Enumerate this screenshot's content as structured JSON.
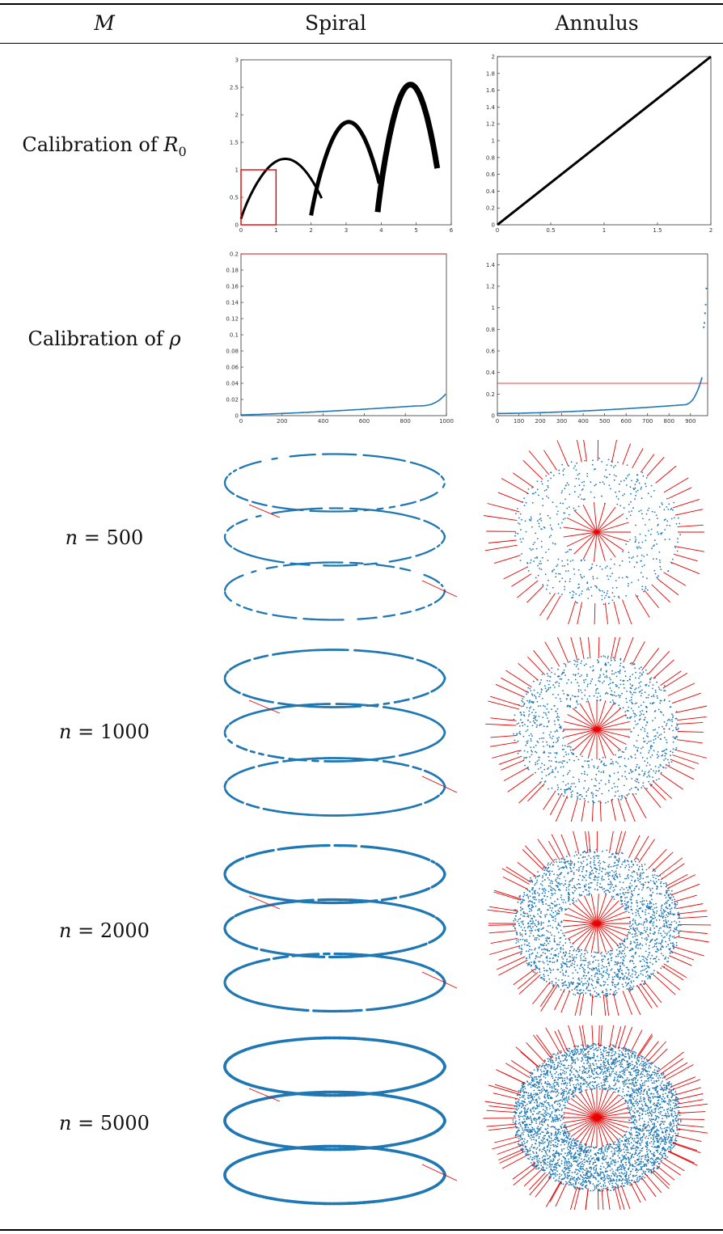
{
  "header": {
    "col_m": "M",
    "col_spiral": "Spiral",
    "col_annulus": "Annulus"
  },
  "rows": {
    "calib_r0": {
      "prefix": "Calibration of ",
      "sym": "R",
      "sub": "0"
    },
    "calib_rho": {
      "prefix": "Calibration of ",
      "sym": "ρ"
    },
    "n500": {
      "sym": "n",
      "rest": " = 500"
    },
    "n1000": {
      "sym": "n",
      "rest": " = 1000"
    },
    "n2000": {
      "sym": "n",
      "rest": " = 2000"
    },
    "n5000": {
      "sym": "n",
      "rest": " = 5000"
    }
  },
  "colors": {
    "points": "#1f77b4",
    "lines": "#e60000",
    "curve": "#000000"
  },
  "chart_data": [
    {
      "id": "spiral-r0",
      "type": "line",
      "xlim": [
        0,
        6
      ],
      "ylim": [
        0,
        3
      ],
      "xticks": [
        "0",
        "1",
        "2",
        "3",
        "4",
        "5",
        "6"
      ],
      "yticks": [
        "0",
        "0.5",
        "1",
        "1.5",
        "2",
        "2.5",
        "3"
      ],
      "highlight_box": {
        "x": [
          0,
          1
        ],
        "y": [
          0,
          1
        ]
      },
      "arches": [
        {
          "x0": 0,
          "x1": 2.3,
          "peak": 1.2
        },
        {
          "x0": 2.0,
          "x1": 3.95,
          "peak": 1.87
        },
        {
          "x0": 3.9,
          "x1": 5.6,
          "peak": 2.55
        }
      ]
    },
    {
      "id": "annulus-r0",
      "type": "line",
      "xlim": [
        0,
        2
      ],
      "ylim": [
        0,
        2
      ],
      "xticks": [
        "0",
        "0.5",
        "1",
        "1.5",
        "2"
      ],
      "yticks": [
        "0",
        "0.2",
        "0.4",
        "0.6",
        "0.8",
        "1",
        "1.2",
        "1.4",
        "1.6",
        "1.8",
        "2"
      ],
      "line": {
        "x": [
          0,
          2
        ],
        "y": [
          0,
          2
        ]
      }
    },
    {
      "id": "spiral-rho",
      "type": "scatter",
      "xlim": [
        0,
        1000
      ],
      "ylim": [
        0,
        0.2
      ],
      "xticks": [
        "0",
        "200",
        "400",
        "600",
        "800",
        "1000"
      ],
      "yticks": [
        "0",
        "0.02",
        "0.04",
        "0.06",
        "0.08",
        "0.1",
        "0.12",
        "0.14",
        "0.16",
        "0.18",
        "0.2"
      ],
      "threshold": 0.2,
      "sorted_values": {
        "count": 1000,
        "start": 0.001,
        "mid": 0.005,
        "p85": 0.012,
        "end": 0.028
      }
    },
    {
      "id": "annulus-rho",
      "type": "scatter",
      "xlim": [
        0,
        980
      ],
      "ylim": [
        0,
        1.5
      ],
      "xticks": [
        "0",
        "100",
        "200",
        "300",
        "400",
        "500",
        "600",
        "700",
        "800",
        "900"
      ],
      "yticks": [
        "0",
        "0.2",
        "0.4",
        "0.6",
        "0.8",
        "1",
        "1.2",
        "1.4"
      ],
      "threshold": 0.3,
      "sorted_values": {
        "count": 960,
        "start": 0.02,
        "mid": 0.05,
        "p90": 0.1,
        "end": 0.4
      },
      "outliers": [
        0.82,
        0.86,
        0.95,
        1.03,
        1.18
      ]
    }
  ]
}
